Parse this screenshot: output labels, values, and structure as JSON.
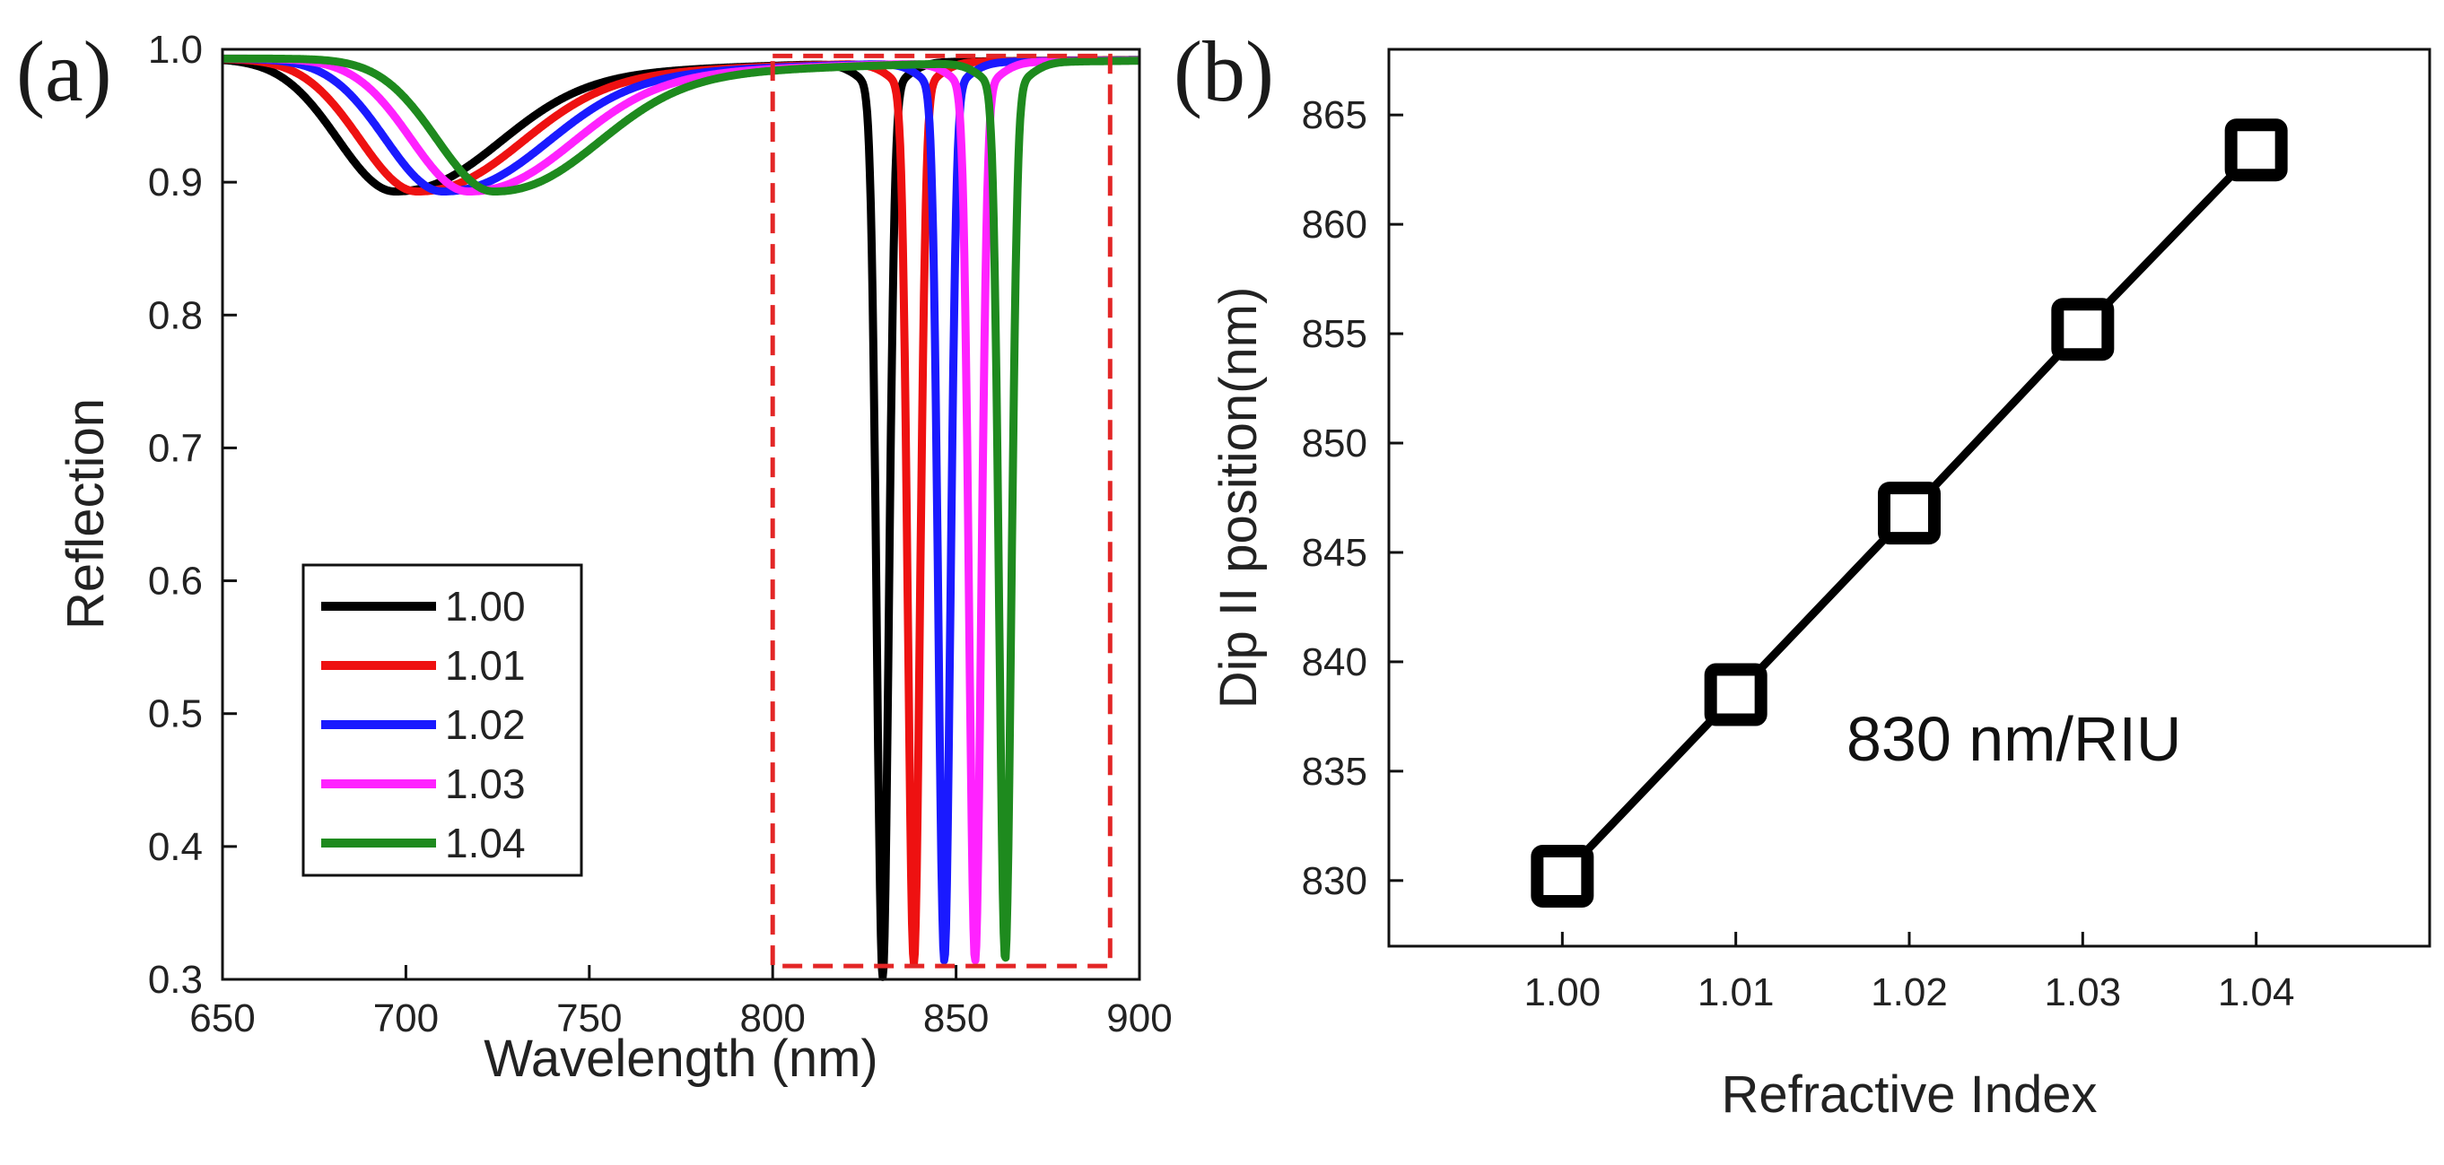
{
  "chart_data": [
    {
      "type": "line",
      "panel_label": "(a)",
      "title": "",
      "xlabel": "Wavelength (nm)",
      "ylabel": "Reflection",
      "xlim": [
        650,
        900
      ],
      "ylim": [
        0.3,
        1.0
      ],
      "xticks": [
        650,
        700,
        750,
        800,
        850,
        900
      ],
      "yticks": [
        0.3,
        0.4,
        0.5,
        0.6,
        0.7,
        0.8,
        0.9,
        1.0
      ],
      "x_tick_labels": [
        "650",
        "700",
        "750",
        "800",
        "850",
        "900"
      ],
      "y_tick_labels": [
        "0.3",
        "0.4",
        "0.5",
        "0.6",
        "0.7",
        "0.8",
        "0.9",
        "1.0"
      ],
      "grid": false,
      "legend_position": "bottom-left",
      "highlight_box": {
        "x_range": [
          800,
          892
        ],
        "y_range": [
          0.31,
          0.995
        ],
        "color": "#e32626",
        "style": "dashed"
      },
      "series": [
        {
          "name": "1.00",
          "color": "#000000",
          "dip1_center": 697,
          "dip1_min": 0.893,
          "dip2_center": 830,
          "dip2_min": 0.325
        },
        {
          "name": "1.01",
          "color": "#ee1111",
          "dip1_center": 703,
          "dip1_min": 0.893,
          "dip2_center": 838.5,
          "dip2_min": 0.335
        },
        {
          "name": "1.02",
          "color": "#1a1aff",
          "dip1_center": 710,
          "dip1_min": 0.893,
          "dip2_center": 846.8,
          "dip2_min": 0.337
        },
        {
          "name": "1.03",
          "color": "#ff22ff",
          "dip1_center": 717,
          "dip1_min": 0.893,
          "dip2_center": 855.2,
          "dip2_min": 0.337
        },
        {
          "name": "1.04",
          "color": "#1e8a1e",
          "dip1_center": 724,
          "dip1_min": 0.893,
          "dip2_center": 863.4,
          "dip2_min": 0.338
        }
      ]
    },
    {
      "type": "line",
      "panel_label": "(b)",
      "title": "",
      "xlabel": "Refractive Index",
      "ylabel": "Dip II position(nm)",
      "xlim": [
        0.99,
        1.05
      ],
      "ylim": [
        827,
        868
      ],
      "xticks": [
        1.0,
        1.01,
        1.02,
        1.03,
        1.04
      ],
      "yticks": [
        830,
        835,
        840,
        845,
        850,
        855,
        860,
        865
      ],
      "x_tick_labels": [
        "1.00",
        "1.01",
        "1.02",
        "1.03",
        "1.04"
      ],
      "y_tick_labels": [
        "830",
        "835",
        "840",
        "845",
        "850",
        "855",
        "860",
        "865"
      ],
      "grid": false,
      "annotation": "830 nm/RIU",
      "series": [
        {
          "name": "Dip II",
          "color": "#000000",
          "marker": "hollow-square",
          "x": [
            1.0,
            1.01,
            1.02,
            1.03,
            1.04
          ],
          "y": [
            830.2,
            838.5,
            846.8,
            855.2,
            863.4
          ]
        }
      ]
    }
  ]
}
